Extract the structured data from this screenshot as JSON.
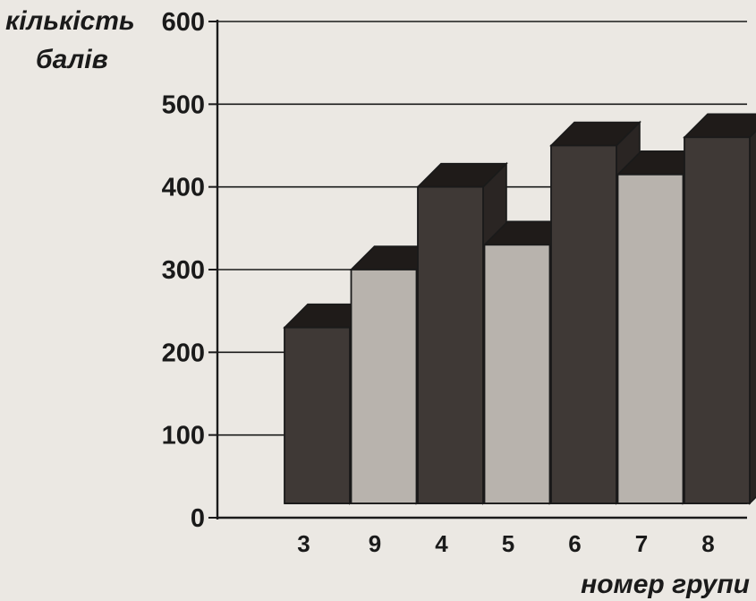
{
  "chart_data": {
    "type": "bar",
    "categories": [
      "3",
      "9",
      "4",
      "5",
      "6",
      "7",
      "8"
    ],
    "values": [
      230,
      300,
      400,
      330,
      450,
      415,
      460
    ],
    "ylabel_line1": "кількість",
    "ylabel_line2": "балів",
    "xlabel": "номер групи",
    "ylim": [
      0,
      600
    ],
    "yticks": [
      "0",
      "100",
      "200",
      "300",
      "400",
      "500",
      "600"
    ],
    "grid": true,
    "style": "3d-bar",
    "colors": {
      "dark_bar": "#3f3936",
      "light_bar": "#b8b3ad",
      "background": "#ebe8e3",
      "line": "#1a1a1a"
    },
    "bar_shading": [
      "dark",
      "light",
      "dark",
      "light",
      "dark",
      "light",
      "dark"
    ]
  }
}
